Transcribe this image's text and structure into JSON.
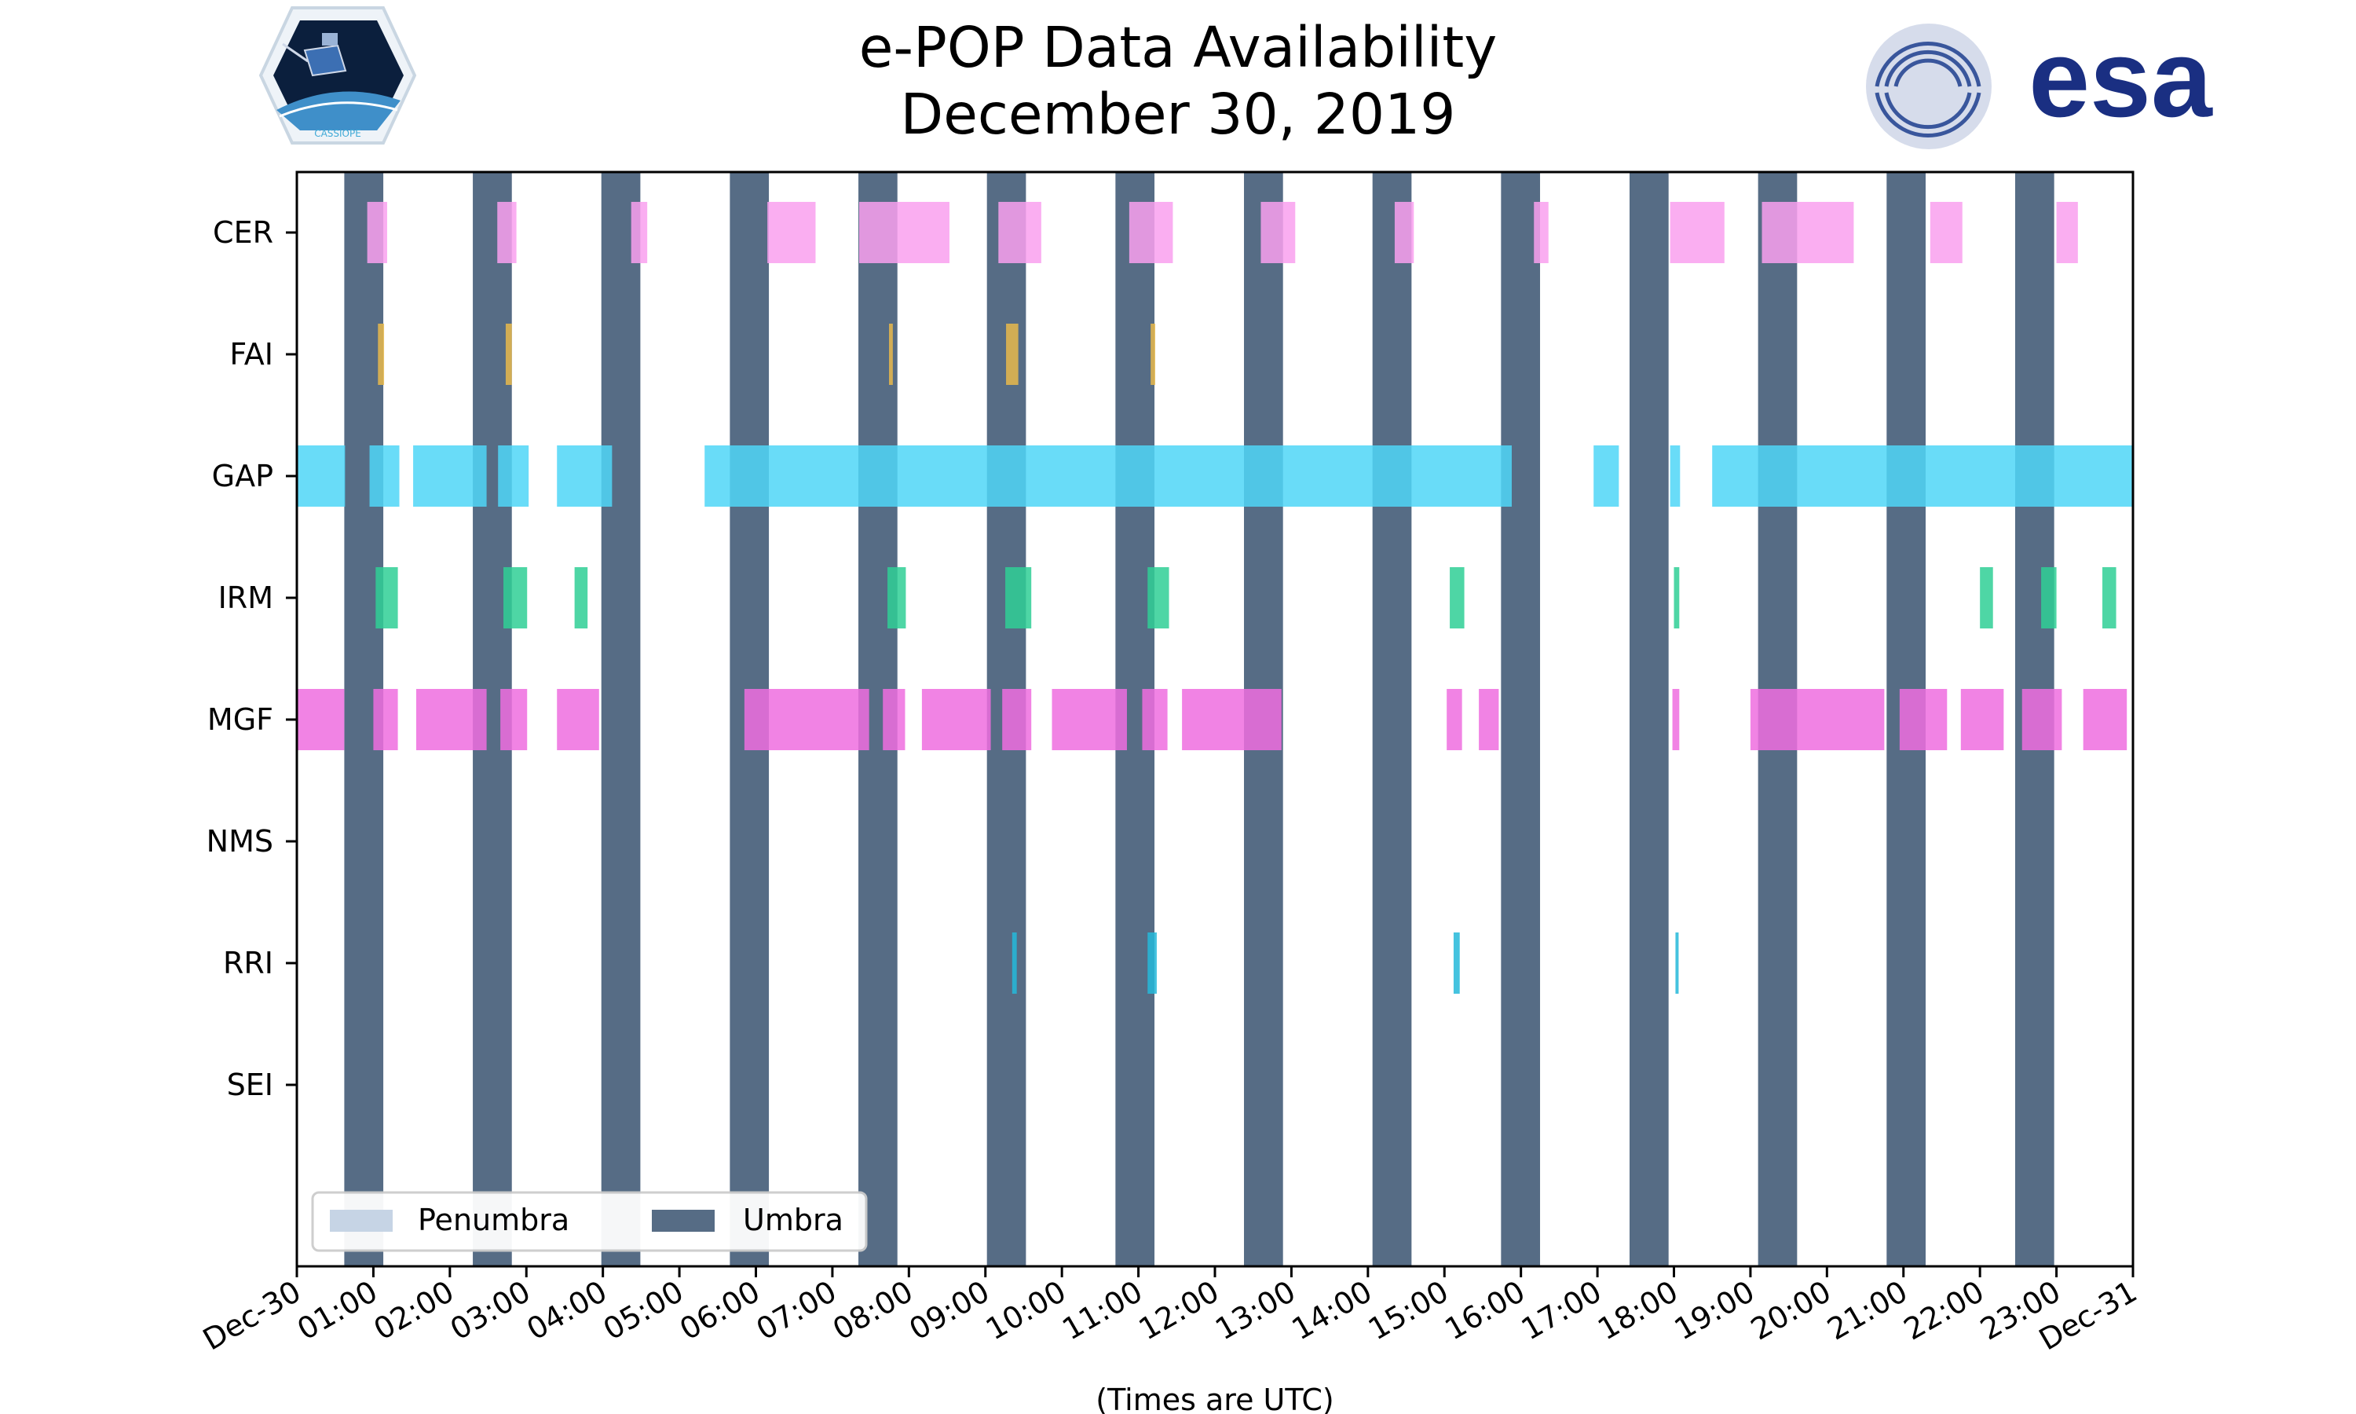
{
  "chart_data": {
    "type": "timeline",
    "title": "e-POP Data Availability",
    "subtitle": "December 30, 2019",
    "xlabel": "(Times are UTC)",
    "xlim_hours": [
      0,
      24
    ],
    "x_tick_labels": [
      "Dec-30",
      "01:00",
      "02:00",
      "03:00",
      "04:00",
      "05:00",
      "06:00",
      "07:00",
      "08:00",
      "09:00",
      "10:00",
      "11:00",
      "12:00",
      "13:00",
      "14:00",
      "15:00",
      "16:00",
      "17:00",
      "18:00",
      "19:00",
      "20:00",
      "21:00",
      "22:00",
      "23:00",
      "Dec-31"
    ],
    "categories": [
      "CER",
      "FAI",
      "GAP",
      "IRM",
      "MGF",
      "NMS",
      "RRI",
      "SEI"
    ],
    "colors": {
      "CER": "#f9a0ef",
      "FAI": "#e8b84b",
      "GAP": "#4fd6f7",
      "IRM": "#2fcf95",
      "MGF": "#ee6ddf",
      "NMS": "#999999",
      "RRI": "#24b8d9",
      "SEI": "#999999",
      "umbra": "#566c85",
      "penumbra": "#c6d4e5"
    },
    "umbra_intervals": [
      [
        0.62,
        1.13
      ],
      [
        2.3,
        2.81
      ],
      [
        3.98,
        4.49
      ],
      [
        5.66,
        6.17
      ],
      [
        7.34,
        7.85
      ],
      [
        9.02,
        9.53
      ],
      [
        10.7,
        11.21
      ],
      [
        12.38,
        12.89
      ],
      [
        14.06,
        14.57
      ],
      [
        15.74,
        16.25
      ],
      [
        17.42,
        17.93
      ],
      [
        19.1,
        19.61
      ],
      [
        20.78,
        21.29
      ],
      [
        22.46,
        22.97
      ]
    ],
    "penumbra_intervals": [],
    "series": [
      {
        "name": "CER",
        "intervals": [
          [
            0.92,
            1.18
          ],
          [
            2.62,
            2.87
          ],
          [
            4.37,
            4.58
          ],
          [
            6.15,
            6.78
          ],
          [
            7.35,
            8.53
          ],
          [
            9.17,
            9.73
          ],
          [
            10.88,
            11.45
          ],
          [
            12.6,
            13.05
          ],
          [
            14.35,
            14.6
          ],
          [
            16.17,
            16.36
          ],
          [
            17.95,
            18.66
          ],
          [
            19.15,
            20.35
          ],
          [
            21.35,
            21.77
          ],
          [
            23.0,
            23.28
          ]
        ]
      },
      {
        "name": "FAI",
        "intervals": [
          [
            1.06,
            1.14
          ],
          [
            2.73,
            2.81
          ],
          [
            7.74,
            7.79
          ],
          [
            9.27,
            9.43
          ],
          [
            11.16,
            11.22
          ]
        ]
      },
      {
        "name": "GAP",
        "intervals": [
          [
            0.0,
            0.63
          ],
          [
            0.95,
            1.34
          ],
          [
            1.52,
            2.48
          ],
          [
            2.63,
            3.03
          ],
          [
            3.4,
            4.12
          ],
          [
            5.33,
            15.88
          ],
          [
            16.95,
            17.28
          ],
          [
            17.95,
            18.08
          ],
          [
            18.5,
            24.0
          ]
        ]
      },
      {
        "name": "IRM",
        "intervals": [
          [
            1.03,
            1.32
          ],
          [
            2.7,
            3.01
          ],
          [
            3.63,
            3.8
          ],
          [
            7.72,
            7.96
          ],
          [
            9.26,
            9.6
          ],
          [
            11.12,
            11.4
          ],
          [
            15.07,
            15.26
          ],
          [
            18.0,
            18.07
          ],
          [
            22.0,
            22.17
          ],
          [
            22.8,
            23.0
          ],
          [
            23.6,
            23.78
          ]
        ]
      },
      {
        "name": "MGF",
        "intervals": [
          [
            0.0,
            0.62
          ],
          [
            1.0,
            1.32
          ],
          [
            1.56,
            2.48
          ],
          [
            2.66,
            3.01
          ],
          [
            3.4,
            3.95
          ],
          [
            5.85,
            7.48
          ],
          [
            7.66,
            7.95
          ],
          [
            8.17,
            9.07
          ],
          [
            9.22,
            9.6
          ],
          [
            9.87,
            10.85
          ],
          [
            11.05,
            11.38
          ],
          [
            11.57,
            12.87
          ],
          [
            15.03,
            15.23
          ],
          [
            15.45,
            15.71
          ],
          [
            17.98,
            18.07
          ],
          [
            19.0,
            20.75
          ],
          [
            20.95,
            21.57
          ],
          [
            21.75,
            22.31
          ],
          [
            22.55,
            23.07
          ],
          [
            23.35,
            23.92
          ]
        ]
      },
      {
        "name": "NMS",
        "intervals": []
      },
      {
        "name": "RRI",
        "intervals": [
          [
            9.35,
            9.41
          ],
          [
            11.12,
            11.24
          ],
          [
            15.12,
            15.2
          ],
          [
            18.02,
            18.06
          ]
        ]
      },
      {
        "name": "SEI",
        "intervals": []
      }
    ],
    "legend": {
      "placement": "lower-left",
      "entries": [
        "Penumbra",
        "Umbra"
      ]
    }
  },
  "logos": {
    "left": "CASSIOPE",
    "right": "esa"
  }
}
